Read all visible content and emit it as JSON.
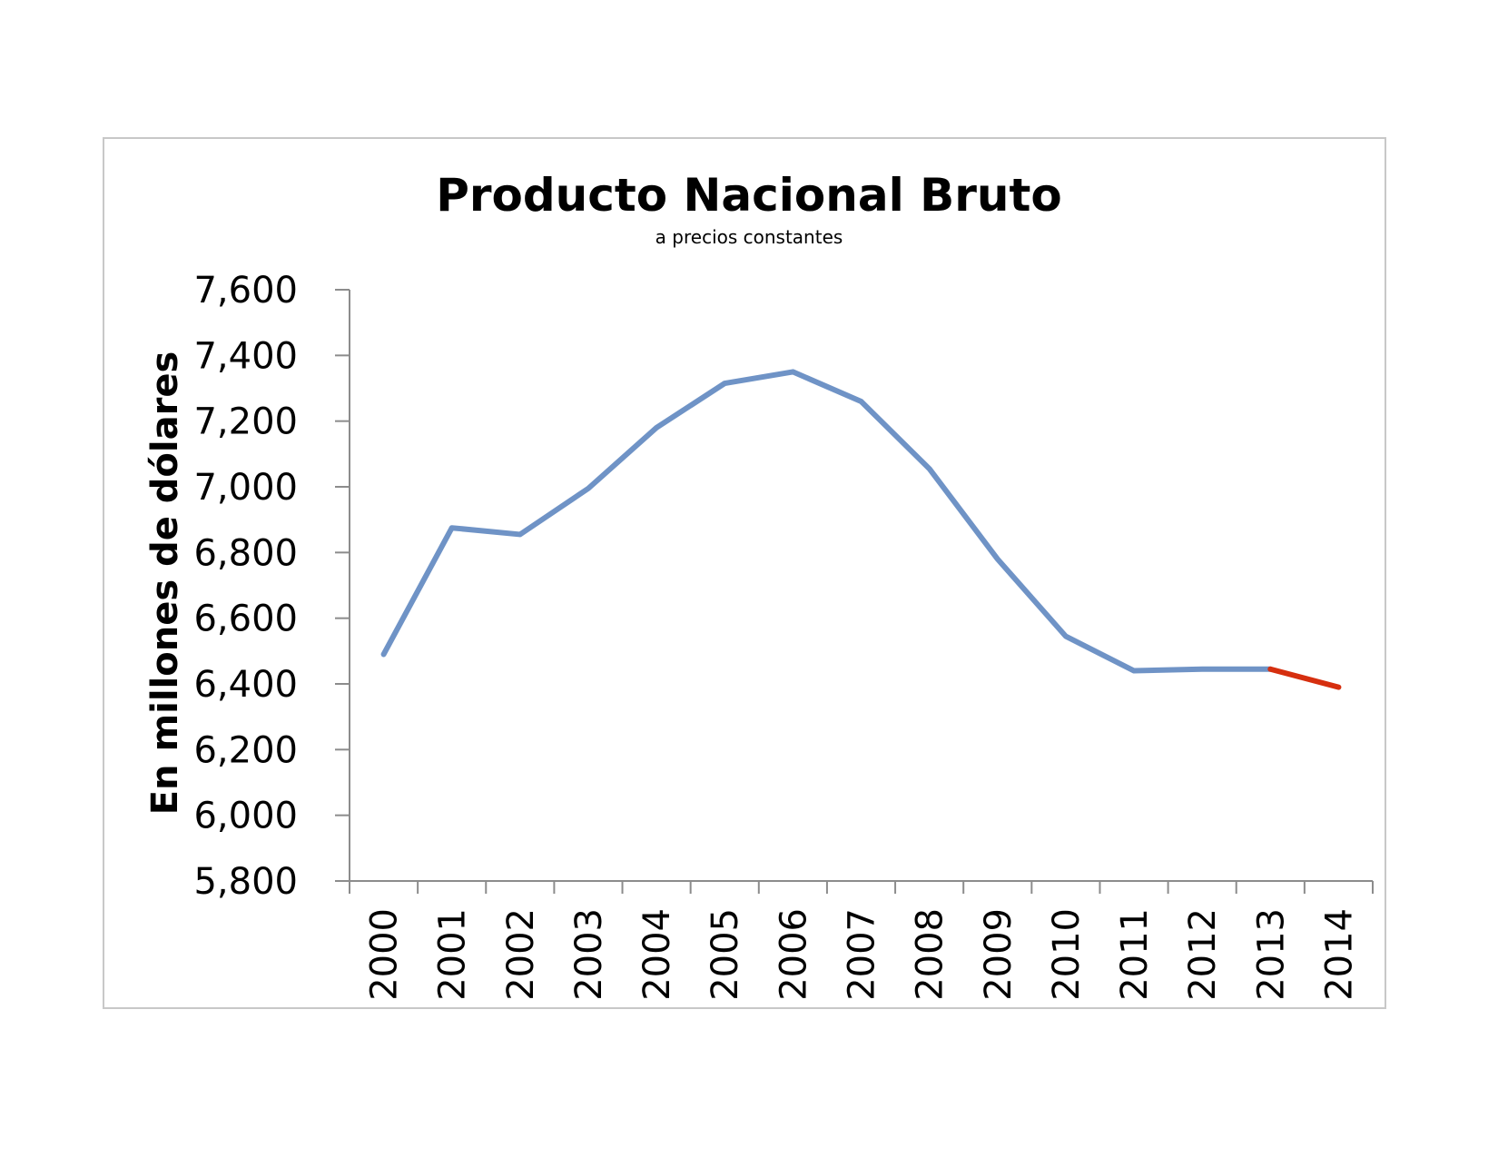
{
  "chart_data": {
    "type": "line",
    "title": "Producto Nacional Bruto",
    "subtitle": "a precios constantes",
    "xlabel": "",
    "ylabel": "En millones de dólares",
    "ylim": [
      5800,
      7600
    ],
    "yticks": [
      "7,600",
      "7,400",
      "7,200",
      "7,000",
      "6,800",
      "6,600",
      "6,400",
      "6,200",
      "6,000",
      "5,800"
    ],
    "ytick_values": [
      7600,
      7400,
      7200,
      7000,
      6800,
      6600,
      6400,
      6200,
      6000,
      5800
    ],
    "categories": [
      "2000",
      "2001",
      "2002",
      "2003",
      "2004",
      "2005",
      "2006",
      "2007",
      "2008",
      "2009",
      "2010",
      "2011",
      "2012",
      "2013",
      "2014"
    ],
    "values": [
      6490,
      6875,
      6855,
      6995,
      7180,
      7315,
      7350,
      7260,
      7055,
      6780,
      6545,
      6440,
      6445,
      6445,
      6390
    ],
    "grid": false,
    "legend": "none",
    "colors": {
      "main_line": "#6f93c6",
      "highlight_line": "#d62f0f",
      "axis": "#8c8c8c",
      "frame": "#c8c8c8"
    },
    "highlight_from_index": 13
  }
}
